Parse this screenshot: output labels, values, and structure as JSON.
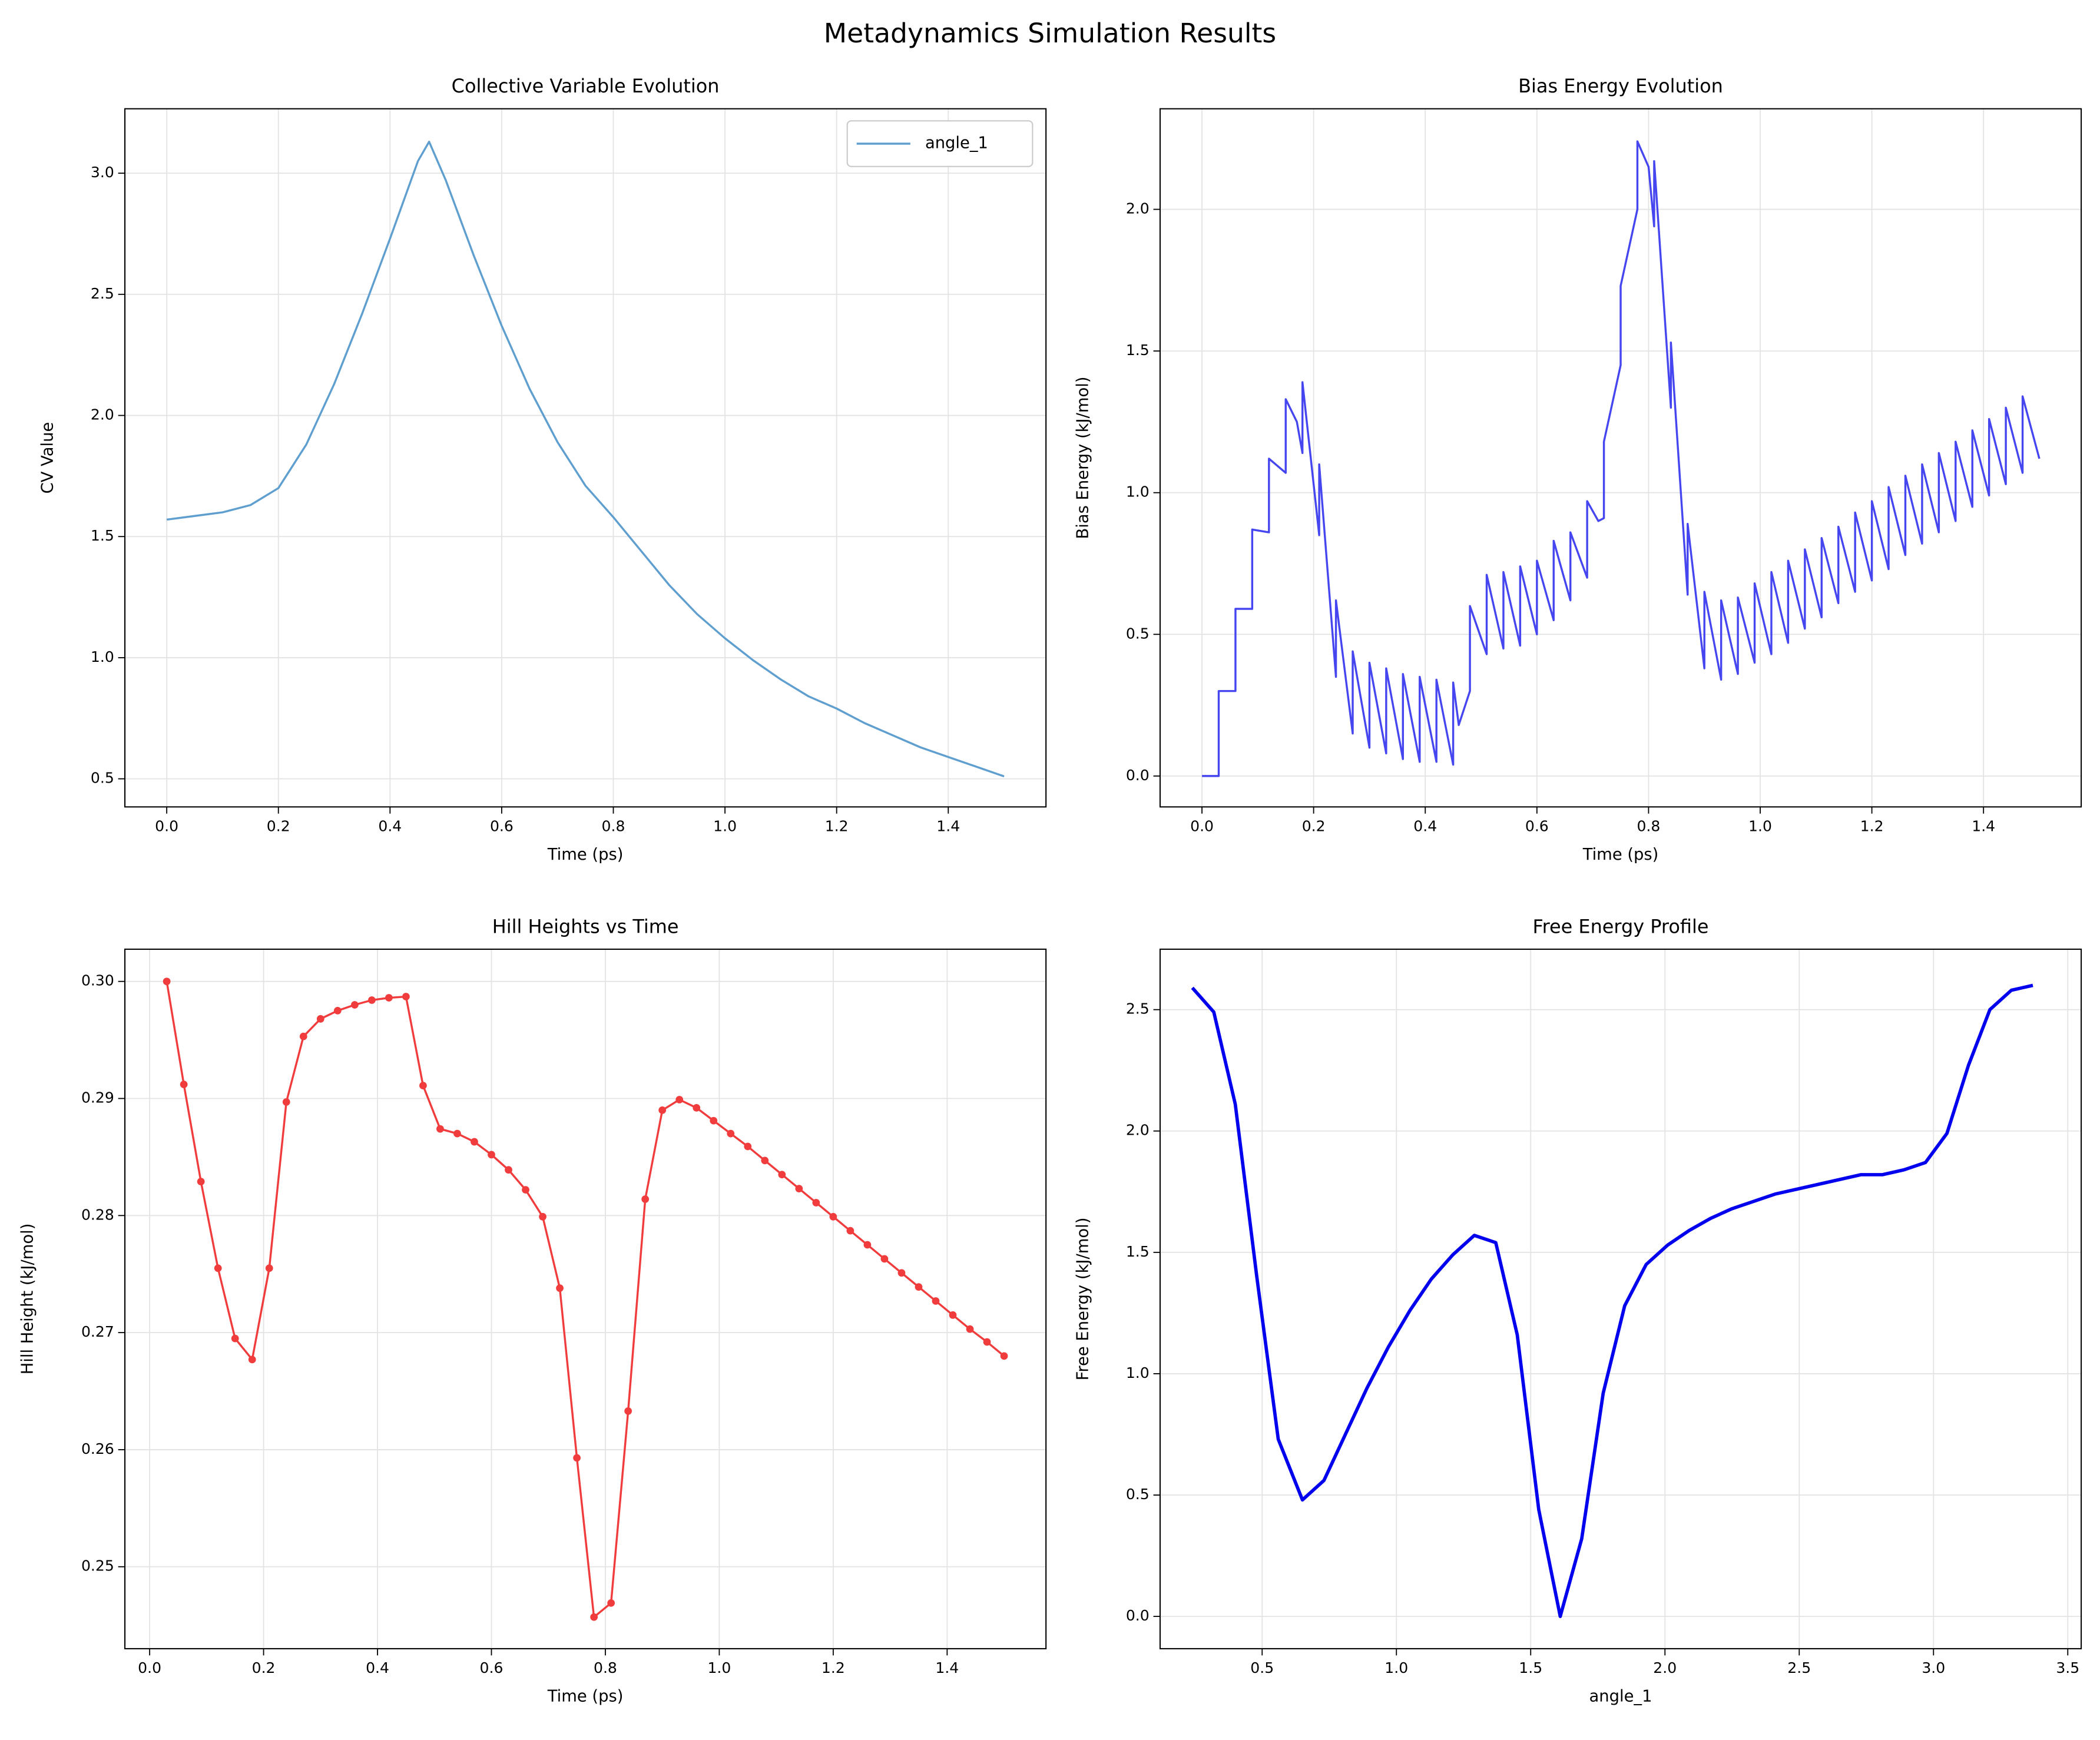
{
  "title": "Metadynamics Simulation Results",
  "chart_data": [
    {
      "type": "line",
      "title": "Collective Variable Evolution",
      "x_label": "Time (ps)",
      "y_label": "CV Value",
      "x": [
        0,
        0.05,
        0.1,
        0.15,
        0.2,
        0.25,
        0.3,
        0.35,
        0.4,
        0.45,
        0.47,
        0.5,
        0.55,
        0.6,
        0.65,
        0.7,
        0.75,
        0.8,
        0.85,
        0.9,
        0.95,
        1.0,
        1.05,
        1.1,
        1.15,
        1.2,
        1.25,
        1.3,
        1.35,
        1.4,
        1.45,
        1.5
      ],
      "series": [
        {
          "name": "angle_1",
          "color": "#5f9fcf",
          "line_width": 1.5,
          "values": [
            1.57,
            1.585,
            1.6,
            1.63,
            1.7,
            1.88,
            2.13,
            2.42,
            2.73,
            3.05,
            3.13,
            2.97,
            2.66,
            2.37,
            2.11,
            1.89,
            1.71,
            1.58,
            1.44,
            1.3,
            1.18,
            1.08,
            0.99,
            0.91,
            0.84,
            0.79,
            0.73,
            0.68,
            0.63,
            0.59,
            0.55,
            0.51
          ]
        }
      ],
      "xlim": [
        -0.075,
        1.575
      ],
      "ylim": [
        0.384,
        3.266
      ],
      "xticks": [
        {
          "value": 0,
          "label": "0.0"
        },
        0.2,
        0.4,
        0.6,
        0.8,
        {
          "value": 1,
          "label": "1.0"
        },
        1.2,
        1.4
      ],
      "yticks": [
        0.5,
        {
          "value": 1,
          "label": "1.0"
        },
        1.5,
        {
          "value": 2,
          "label": "2.0"
        },
        2.5,
        {
          "value": 3,
          "label": "3.0"
        }
      ],
      "grid": true,
      "legend": "upper right"
    },
    {
      "type": "line",
      "title": "Bias Energy Evolution",
      "x_label": "Time (ps)",
      "y_label": "Bias Energy (kJ/mol)",
      "x": [
        0,
        0.03,
        0.03,
        0.06,
        0.06,
        0.09,
        0.09,
        0.12,
        0.12,
        0.15,
        0.15,
        0.17,
        0.18,
        0.18,
        0.21,
        0.21,
        0.24,
        0.24,
        0.27,
        0.27,
        0.3,
        0.3,
        0.33,
        0.33,
        0.36,
        0.36,
        0.39,
        0.39,
        0.42,
        0.42,
        0.45,
        0.45,
        0.46,
        0.48,
        0.48,
        0.51,
        0.51,
        0.54,
        0.54,
        0.57,
        0.57,
        0.6,
        0.6,
        0.63,
        0.63,
        0.66,
        0.66,
        0.69,
        0.69,
        0.71,
        0.72,
        0.72,
        0.75,
        0.75,
        0.78,
        0.78,
        0.8,
        0.81,
        0.81,
        0.84,
        0.84,
        0.87,
        0.87,
        0.9,
        0.9,
        0.93,
        0.93,
        0.96,
        0.96,
        0.99,
        0.99,
        1.02,
        1.02,
        1.05,
        1.05,
        1.08,
        1.08,
        1.11,
        1.11,
        1.14,
        1.14,
        1.17,
        1.17,
        1.2,
        1.2,
        1.23,
        1.23,
        1.26,
        1.26,
        1.29,
        1.29,
        1.32,
        1.32,
        1.35,
        1.35,
        1.38,
        1.38,
        1.41,
        1.41,
        1.44,
        1.44,
        1.47,
        1.47,
        1.5
      ],
      "series": [
        {
          "color": "#4646f0",
          "line_width": 1.5,
          "values": [
            0,
            0,
            0.3,
            0.3,
            0.59,
            0.59,
            0.87,
            0.86,
            1.12,
            1.07,
            1.33,
            1.25,
            1.14,
            1.39,
            0.85,
            1.1,
            0.35,
            0.62,
            0.15,
            0.44,
            0.1,
            0.4,
            0.08,
            0.38,
            0.06,
            0.36,
            0.05,
            0.35,
            0.05,
            0.34,
            0.04,
            0.33,
            0.18,
            0.3,
            0.6,
            0.43,
            0.71,
            0.45,
            0.72,
            0.46,
            0.74,
            0.5,
            0.76,
            0.55,
            0.83,
            0.62,
            0.86,
            0.7,
            0.97,
            0.9,
            0.91,
            1.18,
            1.45,
            1.73,
            2.0,
            2.24,
            2.15,
            1.94,
            2.17,
            1.3,
            1.53,
            0.64,
            0.89,
            0.38,
            0.65,
            0.34,
            0.62,
            0.36,
            0.63,
            0.4,
            0.68,
            0.43,
            0.72,
            0.47,
            0.76,
            0.52,
            0.8,
            0.56,
            0.84,
            0.61,
            0.88,
            0.65,
            0.93,
            0.69,
            0.97,
            0.73,
            1.02,
            0.78,
            1.06,
            0.82,
            1.1,
            0.86,
            1.14,
            0.9,
            1.18,
            0.95,
            1.22,
            0.99,
            1.26,
            1.03,
            1.3,
            1.07,
            1.34,
            1.12
          ]
        }
      ],
      "xlim": [
        -0.075,
        1.575
      ],
      "ylim": [
        -0.109,
        2.355
      ],
      "xticks": [
        {
          "value": 0,
          "label": "0.0"
        },
        0.2,
        0.4,
        0.6,
        0.8,
        {
          "value": 1,
          "label": "1.0"
        },
        1.2,
        1.4
      ],
      "yticks": [
        {
          "value": 0,
          "label": "0.0"
        },
        0.5,
        {
          "value": 1,
          "label": "1.0"
        },
        1.5,
        {
          "value": 2,
          "label": "2.0"
        }
      ],
      "grid": true
    },
    {
      "type": "line",
      "title": "Hill Heights vs Time",
      "x_label": "Time (ps)",
      "y_label": "Hill Height (kJ/mol)",
      "x": [
        0.03,
        0.06,
        0.09,
        0.12,
        0.15,
        0.18,
        0.21,
        0.24,
        0.27,
        0.3,
        0.33,
        0.36,
        0.39,
        0.42,
        0.45,
        0.48,
        0.51,
        0.54,
        0.57,
        0.6,
        0.63,
        0.66,
        0.69,
        0.72,
        0.75,
        0.78,
        0.81,
        0.84,
        0.87,
        0.9,
        0.93,
        0.96,
        0.99,
        1.02,
        1.05,
        1.08,
        1.11,
        1.14,
        1.17,
        1.2,
        1.23,
        1.26,
        1.29,
        1.32,
        1.35,
        1.38,
        1.41,
        1.44,
        1.47,
        1.5
      ],
      "series": [
        {
          "color": "#f03c3c",
          "line_width": 1.5,
          "marker": "circle",
          "values": [
            0.3,
            0.2912,
            0.2829,
            0.2755,
            0.2695,
            0.2677,
            0.2755,
            0.2897,
            0.2953,
            0.2968,
            0.2975,
            0.298,
            0.2984,
            0.2986,
            0.2987,
            0.2911,
            0.2874,
            0.287,
            0.2863,
            0.2852,
            0.2839,
            0.2822,
            0.2799,
            0.2738,
            0.2593,
            0.2457,
            0.2469,
            0.2633,
            0.2814,
            0.289,
            0.2899,
            0.2892,
            0.2881,
            0.287,
            0.2859,
            0.2847,
            0.2835,
            0.2823,
            0.2811,
            0.2799,
            0.2787,
            0.2775,
            0.2763,
            0.2751,
            0.2739,
            0.2727,
            0.2715,
            0.2703,
            0.2692,
            0.268
          ]
        }
      ],
      "xlim": [
        -0.0435,
        1.5735
      ],
      "ylim": [
        0.243,
        0.30275
      ],
      "xticks": [
        {
          "value": 0,
          "label": "0.0"
        },
        0.2,
        0.4,
        0.6,
        0.8,
        {
          "value": 1,
          "label": "1.0"
        },
        1.2,
        1.4
      ],
      "yticks": [
        0.25,
        0.26,
        0.27,
        0.28,
        0.29,
        {
          "value": 0.3,
          "label": "0.30"
        }
      ],
      "grid": true
    },
    {
      "type": "line",
      "title": "Free Energy Profile",
      "x_label": "angle_1",
      "y_label": "Free Energy (kJ/mol)",
      "x": [
        0.24,
        0.32,
        0.4,
        0.48,
        0.56,
        0.65,
        0.73,
        0.81,
        0.89,
        0.97,
        1.05,
        1.13,
        1.21,
        1.29,
        1.37,
        1.45,
        1.53,
        1.61,
        1.69,
        1.77,
        1.85,
        1.93,
        2.01,
        2.09,
        2.17,
        2.25,
        2.33,
        2.41,
        2.49,
        2.57,
        2.65,
        2.73,
        2.81,
        2.89,
        2.97,
        3.05,
        3.13,
        3.21,
        3.29,
        3.37
      ],
      "series": [
        {
          "color": "#0000ee",
          "line_width": 2.5,
          "values": [
            2.59,
            2.49,
            2.11,
            1.4,
            0.73,
            0.48,
            0.56,
            0.75,
            0.94,
            1.11,
            1.26,
            1.39,
            1.49,
            1.57,
            1.54,
            1.16,
            0.44,
            0,
            0.32,
            0.92,
            1.28,
            1.45,
            1.53,
            1.59,
            1.64,
            1.68,
            1.71,
            1.74,
            1.76,
            1.78,
            1.8,
            1.82,
            1.82,
            1.84,
            1.87,
            1.99,
            2.27,
            2.5,
            2.58,
            2.6
          ]
        }
      ],
      "xlim": [
        0.12,
        3.55
      ],
      "ylim": [
        -0.133,
        2.749
      ],
      "xticks": [
        0.5,
        {
          "value": 1,
          "label": "1.0"
        },
        1.5,
        {
          "value": 2,
          "label": "2.0"
        },
        2.5,
        {
          "value": 3,
          "label": "3.0"
        },
        3.5
      ],
      "yticks": [
        {
          "value": 0,
          "label": "0.0"
        },
        0.5,
        {
          "value": 1,
          "label": "1.0"
        },
        1.5,
        {
          "value": 2,
          "label": "2.0"
        },
        2.5
      ],
      "grid": true
    }
  ]
}
